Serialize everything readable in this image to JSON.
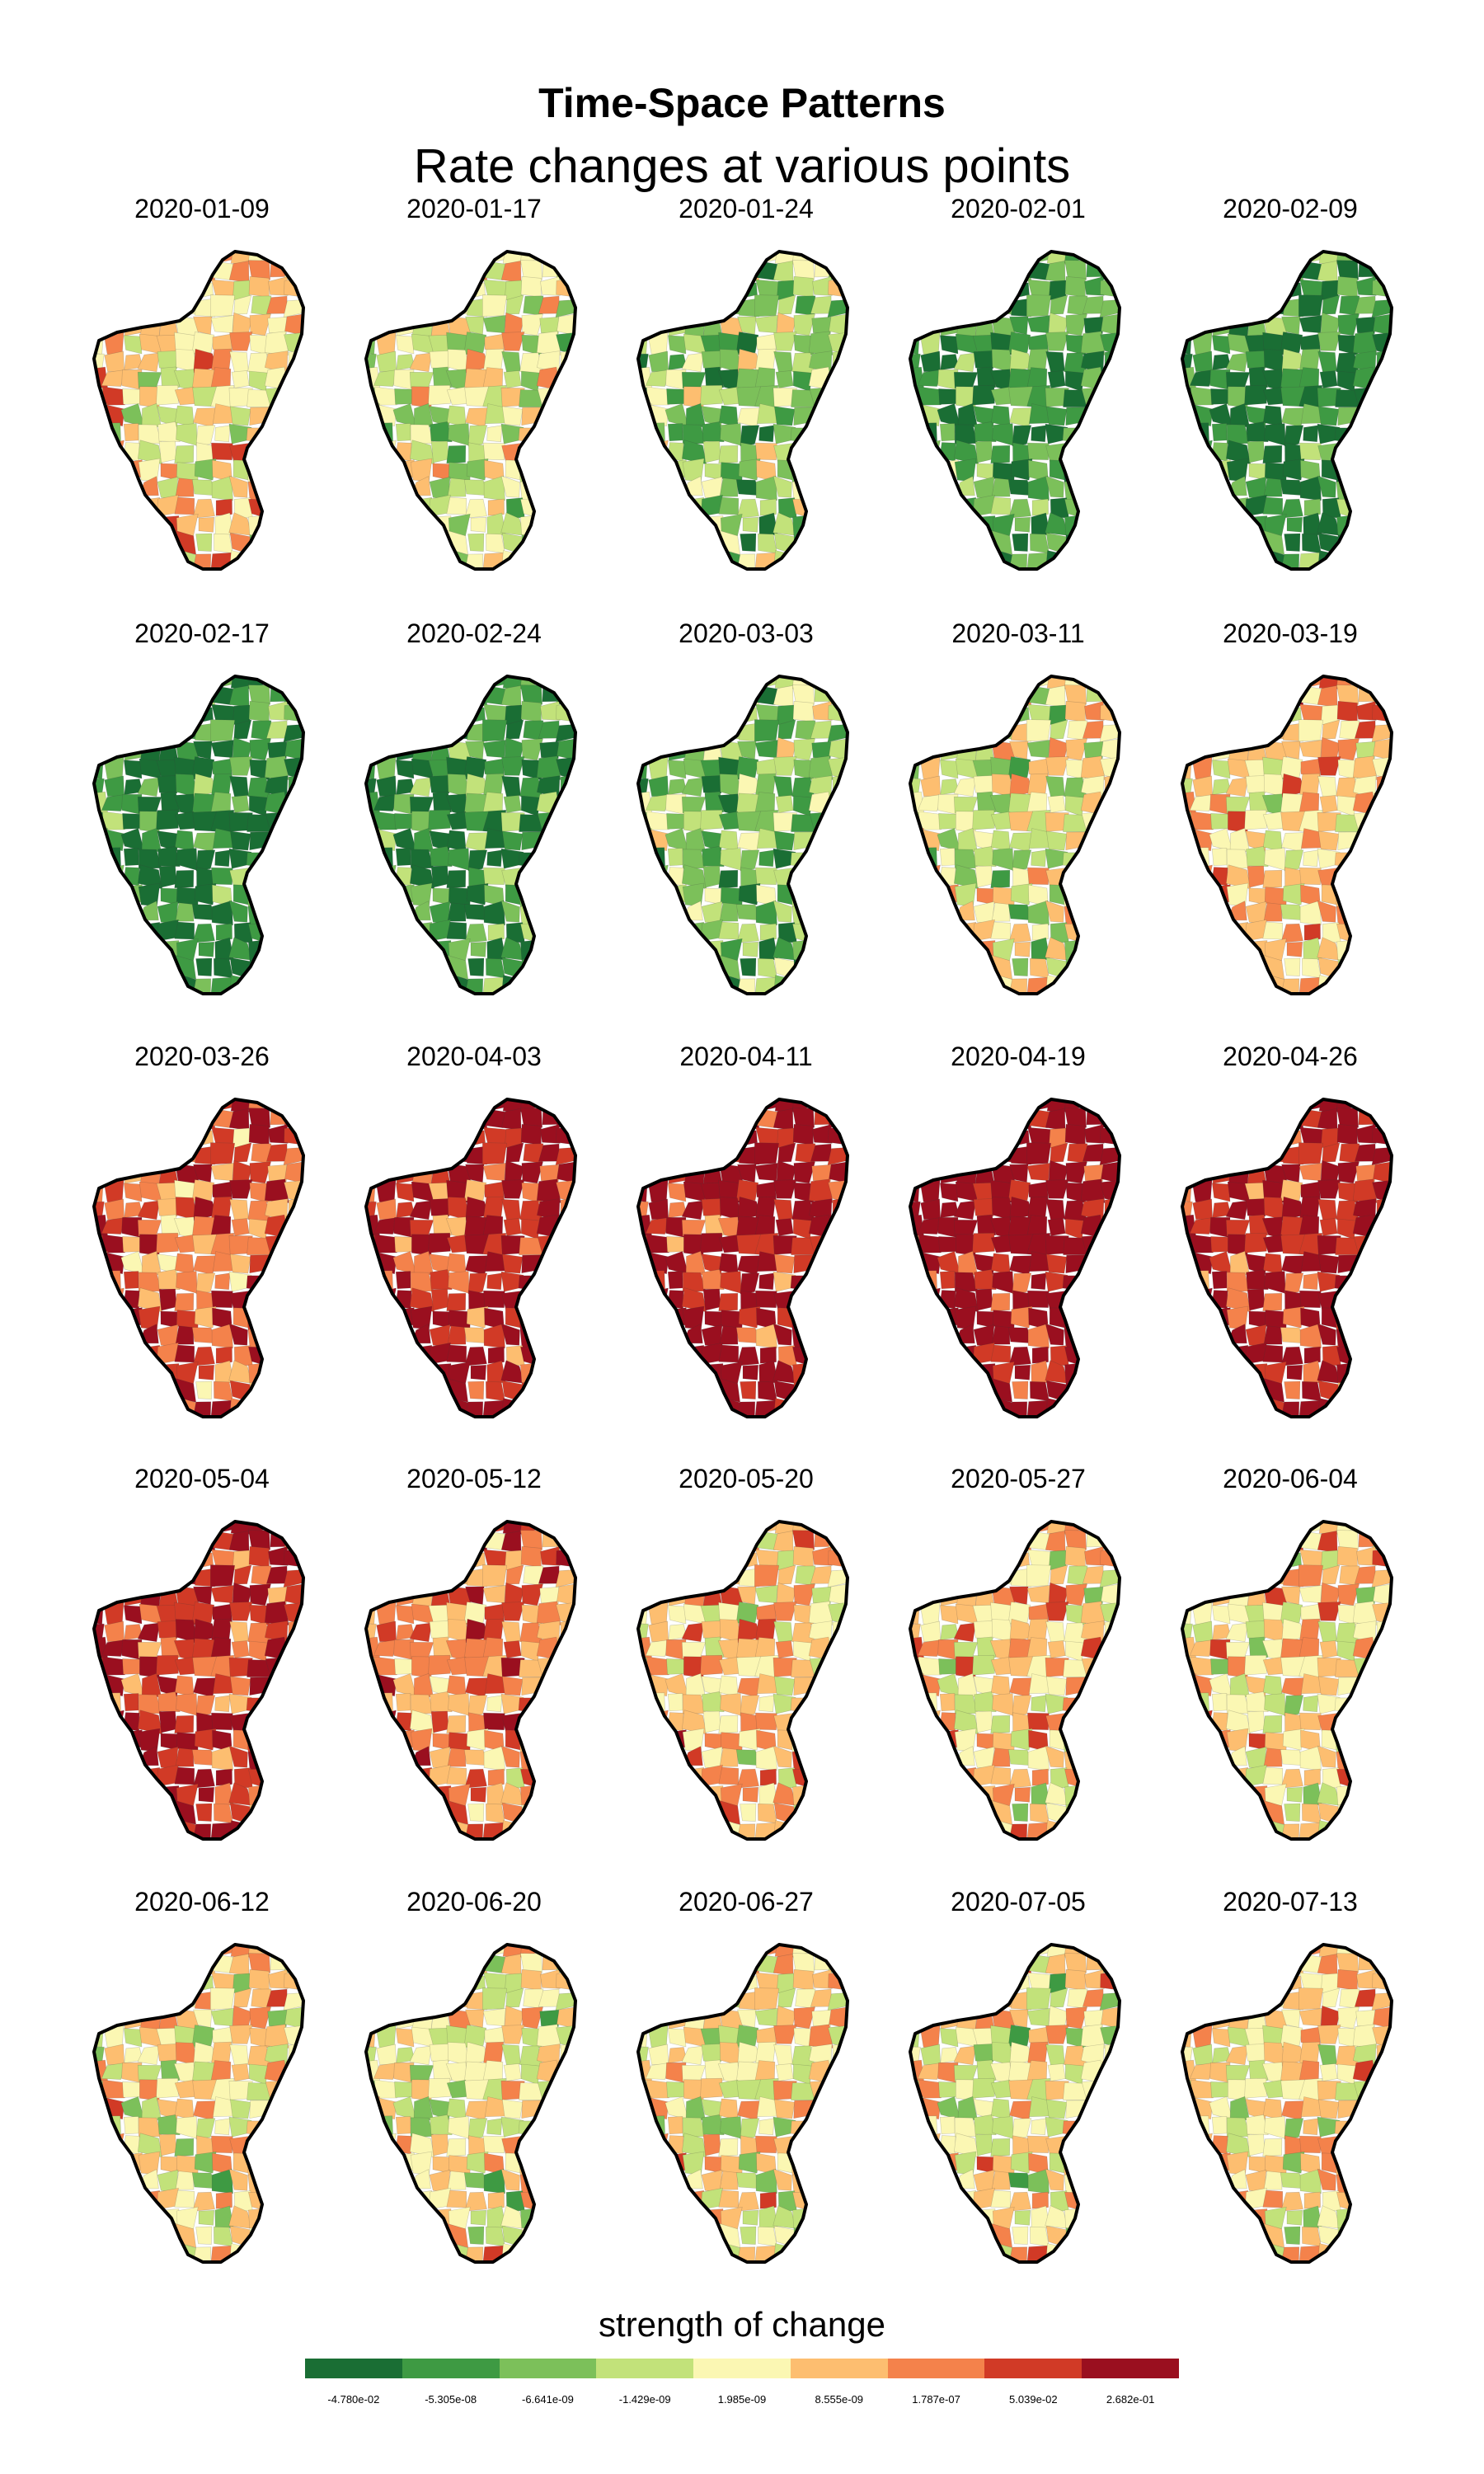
{
  "title": "Time-Space Patterns",
  "subtitle": "Rate changes at various points",
  "panels": [
    {
      "date": "2020-01-09",
      "level": 4.5
    },
    {
      "date": "2020-01-17",
      "level": 3.5
    },
    {
      "date": "2020-01-24",
      "level": 2.5
    },
    {
      "date": "2020-02-01",
      "level": 1.2
    },
    {
      "date": "2020-02-09",
      "level": 0.6
    },
    {
      "date": "2020-02-17",
      "level": 0.5
    },
    {
      "date": "2020-02-24",
      "level": 0.8
    },
    {
      "date": "2020-03-03",
      "level": 2.2
    },
    {
      "date": "2020-03-11",
      "level": 3.8
    },
    {
      "date": "2020-03-19",
      "level": 4.8
    },
    {
      "date": "2020-03-26",
      "level": 6.3
    },
    {
      "date": "2020-04-03",
      "level": 7.6
    },
    {
      "date": "2020-04-11",
      "level": 8.0
    },
    {
      "date": "2020-04-19",
      "level": 8.2
    },
    {
      "date": "2020-04-26",
      "level": 7.7
    },
    {
      "date": "2020-05-04",
      "level": 7.2
    },
    {
      "date": "2020-05-12",
      "level": 5.8
    },
    {
      "date": "2020-05-20",
      "level": 4.9
    },
    {
      "date": "2020-05-27",
      "level": 4.6
    },
    {
      "date": "2020-06-04",
      "level": 4.4
    },
    {
      "date": "2020-06-12",
      "level": 4.3
    },
    {
      "date": "2020-06-20",
      "level": 3.9
    },
    {
      "date": "2020-06-27",
      "level": 4.1
    },
    {
      "date": "2020-07-05",
      "level": 4.0
    },
    {
      "date": "2020-07-13",
      "level": 4.5
    }
  ],
  "legend": {
    "title": "strength of change",
    "colors": [
      "#1a6e34",
      "#3e9a43",
      "#7cc05a",
      "#c2e27a",
      "#fbf7b3",
      "#fdbe70",
      "#f4824b",
      "#d13a26",
      "#9a0f1f"
    ],
    "labels": [
      "-4.780e-02",
      "-5.305e-08",
      "-6.641e-09",
      "-1.429e-09",
      "1.985e-09",
      "8.555e-09",
      "1.787e-07",
      "5.039e-02",
      "2.682e-01"
    ]
  }
}
